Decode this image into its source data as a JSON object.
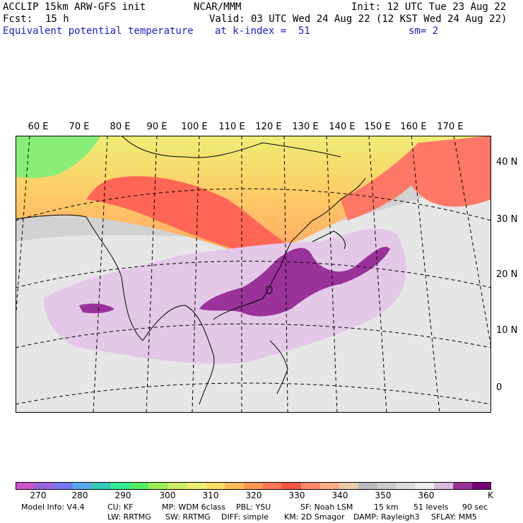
{
  "header": {
    "model": "ACCLIP 15km ARW-GFS init",
    "org": "NCAR/MMM",
    "init": "Init: 12 UTC Tue 23 Aug 22",
    "fcst_label": "Fcst:",
    "fcst_value": "15 h",
    "valid": "Valid: 03 UTC Wed 24 Aug 22 (12 KST Wed 24 Aug 22)",
    "field": "Equivalent potential temperature",
    "level": "at k-index =  51",
    "smooth": "sm= 2"
  },
  "axes": {
    "lon_labels": [
      "60 E",
      "70 E",
      "80 E",
      "90 E",
      "100 E",
      "110 E",
      "120 E",
      "130 E",
      "140 E",
      "150 E",
      "160 E",
      "170 E"
    ],
    "lat_labels": [
      "40 N",
      "30 N",
      "20 N",
      "10 N",
      "0"
    ]
  },
  "colorbar": {
    "unit": "K",
    "ticks": [
      "270",
      "280",
      "290",
      "300",
      "310",
      "320",
      "330",
      "340",
      "350",
      "360"
    ],
    "colors": [
      "#cc55cc",
      "#9966dd",
      "#7777ee",
      "#55aaee",
      "#33ccbb",
      "#33ee99",
      "#55ee66",
      "#99ee55",
      "#ccee66",
      "#eeee77",
      "#ffdd66",
      "#ffbb55",
      "#ff9955",
      "#ff7755",
      "#ff5544",
      "#ff8866",
      "#ffaa88",
      "#eeccaa",
      "#bbbbbb",
      "#cccccc",
      "#dddddd",
      "#eeeeee",
      "#ddbbdd",
      "#993399",
      "#770077"
    ]
  },
  "footer": {
    "line1": [
      "Model Info: V4.4",
      "CU: KF",
      "MP: WDM 6class",
      "PBL: YSU",
      "SF: Noah LSM",
      "15 km",
      "51 levels",
      "90 sec"
    ],
    "line2": [
      "LW: RRTMG",
      "SW: RRTMG",
      "DIFF: simple",
      "KM: 2D Smagor",
      "DAMP: Rayleigh3",
      "SFLAY: MM5"
    ]
  }
}
